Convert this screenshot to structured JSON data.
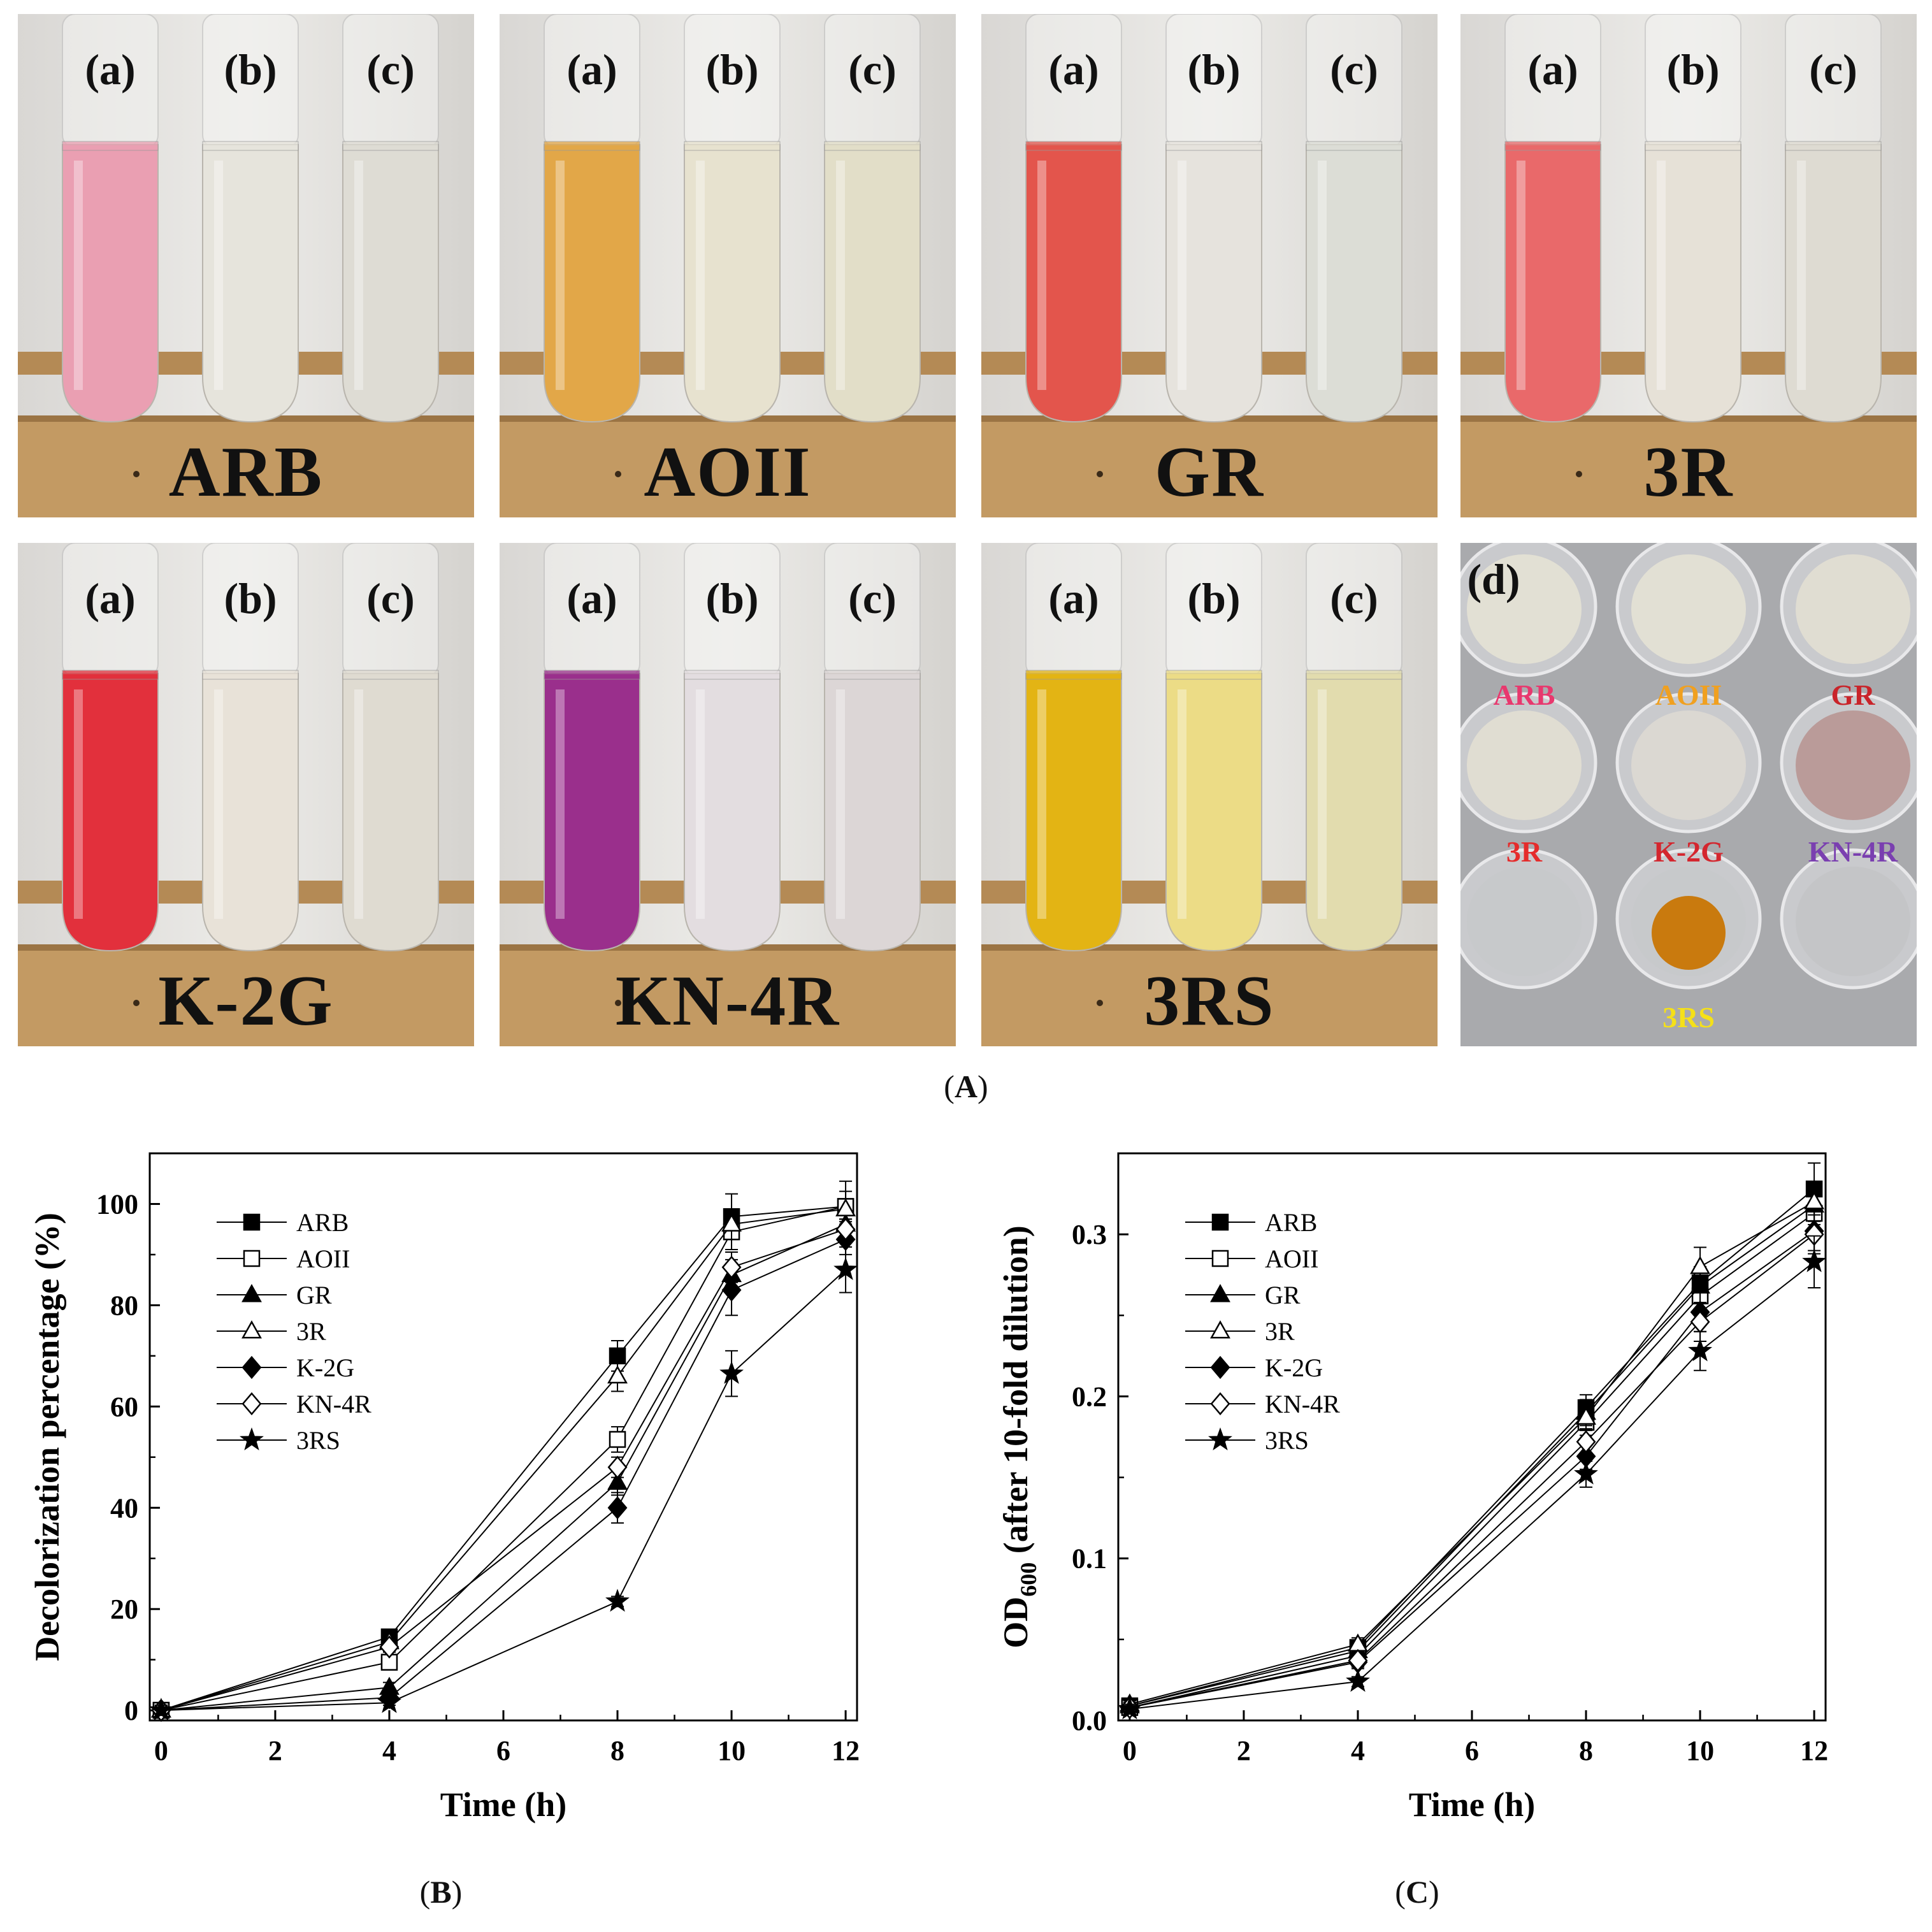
{
  "photo_panels": [
    {
      "dye": "ARB",
      "tube_labels": [
        "(a)",
        "(b)",
        "(c)"
      ],
      "colors": [
        "#ea9fb2",
        "#e6e4dc",
        "#dedcd4"
      ]
    },
    {
      "dye": "AOII",
      "tube_labels": [
        "(a)",
        "(b)",
        "(c)"
      ],
      "colors": [
        "#e2a748",
        "#e7e2cf",
        "#e2dec8"
      ]
    },
    {
      "dye": "GR",
      "tube_labels": [
        "(a)",
        "(b)",
        "(c)"
      ],
      "colors": [
        "#e3554c",
        "#e6e3dd",
        "#dcddd6"
      ]
    },
    {
      "dye": "3R",
      "tube_labels": [
        "(a)",
        "(b)",
        "(c)"
      ],
      "colors": [
        "#e9696a",
        "#e6e1d7",
        "#dedbd2"
      ]
    },
    {
      "dye": "K-2G",
      "tube_labels": [
        "(a)",
        "(b)",
        "(c)"
      ],
      "colors": [
        "#e2303c",
        "#e8e2d8",
        "#dfdbd1"
      ]
    },
    {
      "dye": "KN-4R",
      "tube_labels": [
        "(a)",
        "(b)",
        "(c)"
      ],
      "colors": [
        "#9a2f8c",
        "#e3dde0",
        "#dcd6d6"
      ]
    },
    {
      "dye": "3RS",
      "tube_labels": [
        "(a)",
        "(b)",
        "(c)"
      ],
      "colors": [
        "#e3b414",
        "#ecdc86",
        "#e2dcae"
      ]
    }
  ],
  "plate": {
    "label": "(d)",
    "wells": [
      {
        "name": "ARB",
        "color": "#e8386e"
      },
      {
        "name": "AOII",
        "color": "#f0a020"
      },
      {
        "name": "GR",
        "color": "#c9242a"
      },
      {
        "name": "3R",
        "color": "#e52b2b"
      },
      {
        "name": "K-2G",
        "color": "#d4262e"
      },
      {
        "name": "KN-4R",
        "color": "#7a3fb0"
      },
      {
        "name": "3RS",
        "color": "#f5e019"
      }
    ]
  },
  "captions": {
    "A": "A",
    "B": "B",
    "C": "C"
  },
  "chart_data": [
    {
      "type": "line",
      "panel": "B",
      "xlabel": "Time (h)",
      "ylabel": "Decolorization percentage (%)",
      "xlim": [
        -0.2,
        12.2
      ],
      "ylim": [
        -2,
        110
      ],
      "xticks": [
        0,
        2,
        4,
        6,
        8,
        10,
        12
      ],
      "yticks": [
        0,
        20,
        40,
        60,
        80,
        100
      ],
      "xtick_labels": [
        "0",
        "2",
        "4",
        "6",
        "8",
        "10",
        "12"
      ],
      "ytick_labels": [
        "0",
        "20",
        "40",
        "60",
        "80",
        "100"
      ],
      "x": [
        0,
        4,
        8,
        10,
        12
      ],
      "series": [
        {
          "name": "ARB",
          "marker": "square-filled",
          "values": [
            0,
            14.5,
            70,
            97.5,
            99.5
          ],
          "errors": [
            1,
            1,
            3,
            4.5,
            5
          ]
        },
        {
          "name": "AOII",
          "marker": "square-open",
          "values": [
            0,
            9.5,
            53.5,
            94.5,
            99.5
          ],
          "errors": [
            1,
            1.5,
            2.5,
            3.5,
            3
          ]
        },
        {
          "name": "GR",
          "marker": "triangle-filled",
          "values": [
            0,
            4.5,
            45,
            86,
            96
          ],
          "errors": [
            1,
            1,
            2.5,
            3,
            2.5
          ]
        },
        {
          "name": "3R",
          "marker": "triangle-open",
          "values": [
            0,
            13.5,
            66,
            96,
            99
          ],
          "errors": [
            1,
            1,
            3,
            3,
            2
          ]
        },
        {
          "name": "K-2G",
          "marker": "diamond-filled",
          "values": [
            0,
            2.5,
            40,
            83,
            93
          ],
          "errors": [
            1,
            1,
            3,
            5,
            3
          ]
        },
        {
          "name": "KN-4R",
          "marker": "diamond-open",
          "values": [
            0,
            12.5,
            48,
            87.5,
            95
          ],
          "errors": [
            1,
            1,
            2,
            3,
            2
          ]
        },
        {
          "name": "3RS",
          "marker": "star-filled",
          "values": [
            0,
            1.5,
            21.5,
            66.5,
            87
          ],
          "errors": [
            1,
            0.5,
            1,
            4.5,
            4.5
          ]
        }
      ]
    },
    {
      "type": "line",
      "panel": "C",
      "xlabel": "Time (h)",
      "ylabel_main": "OD",
      "ylabel_sub": "600",
      "ylabel_rest": " (after 10-fold dilution)",
      "xlim": [
        -0.2,
        12.2
      ],
      "ylim": [
        0,
        0.35
      ],
      "xticks": [
        0,
        2,
        4,
        6,
        8,
        10,
        12
      ],
      "yticks": [
        0,
        0.1,
        0.2,
        0.3
      ],
      "xtick_labels": [
        "0",
        "2",
        "4",
        "6",
        "8",
        "10",
        "12"
      ],
      "ytick_labels": [
        "0.0",
        "0.1",
        "0.2",
        "0.3"
      ],
      "x": [
        0,
        4,
        8,
        10,
        12
      ],
      "series": [
        {
          "name": "ARB",
          "marker": "square-filled",
          "values": [
            0.009,
            0.045,
            0.193,
            0.27,
            0.328
          ],
          "errors": [
            0.003,
            0.004,
            0.008,
            0.01,
            0.016
          ]
        },
        {
          "name": "AOII",
          "marker": "square-open",
          "values": [
            0.008,
            0.04,
            0.184,
            0.262,
            0.313
          ],
          "errors": [
            0.003,
            0.004,
            0.008,
            0.01,
            0.012
          ]
        },
        {
          "name": "GR",
          "marker": "triangle-filled",
          "values": [
            0.009,
            0.043,
            0.19,
            0.268,
            0.318
          ],
          "errors": [
            0.003,
            0.004,
            0.008,
            0.01,
            0.012
          ]
        },
        {
          "name": "3R",
          "marker": "triangle-open",
          "values": [
            0.01,
            0.047,
            0.187,
            0.28,
            0.32
          ],
          "errors": [
            0.003,
            0.004,
            0.008,
            0.012,
            0.012
          ]
        },
        {
          "name": "K-2G",
          "marker": "diamond-filled",
          "values": [
            0.008,
            0.036,
            0.163,
            0.252,
            0.302
          ],
          "errors": [
            0.003,
            0.004,
            0.008,
            0.012,
            0.012
          ]
        },
        {
          "name": "KN-4R",
          "marker": "diamond-open",
          "values": [
            0.008,
            0.037,
            0.172,
            0.246,
            0.3
          ],
          "errors": [
            0.003,
            0.004,
            0.008,
            0.012,
            0.012
          ]
        },
        {
          "name": "3RS",
          "marker": "star-filled",
          "values": [
            0.007,
            0.024,
            0.152,
            0.228,
            0.283
          ],
          "errors": [
            0.003,
            0.003,
            0.008,
            0.012,
            0.016
          ]
        }
      ]
    }
  ]
}
